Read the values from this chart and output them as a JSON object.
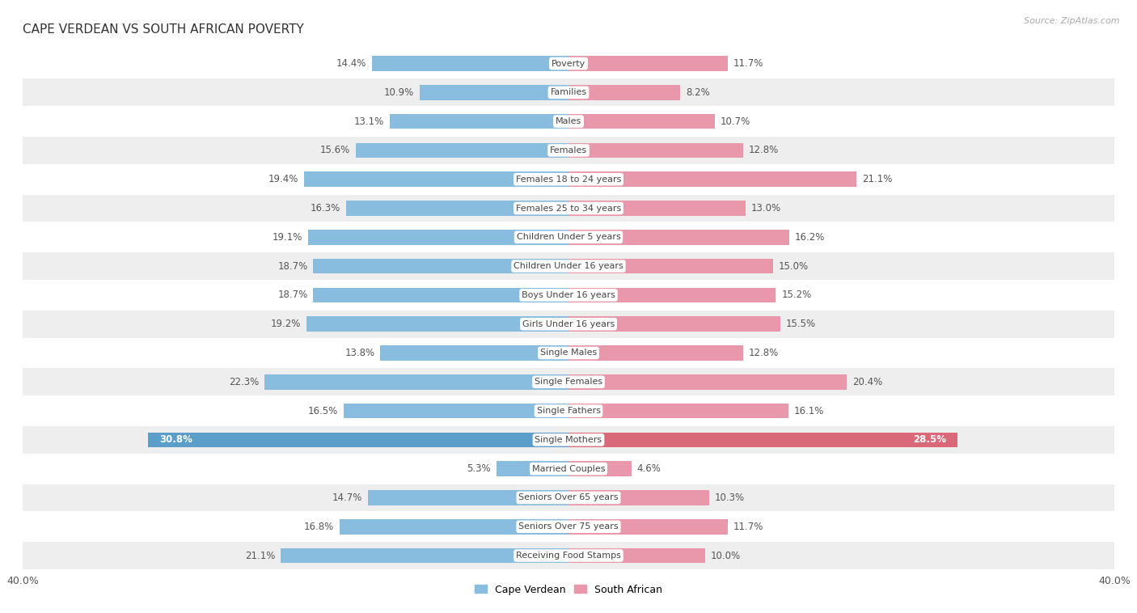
{
  "title": "CAPE VERDEAN VS SOUTH AFRICAN POVERTY",
  "source": "Source: ZipAtlas.com",
  "categories": [
    "Poverty",
    "Families",
    "Males",
    "Females",
    "Females 18 to 24 years",
    "Females 25 to 34 years",
    "Children Under 5 years",
    "Children Under 16 years",
    "Boys Under 16 years",
    "Girls Under 16 years",
    "Single Males",
    "Single Females",
    "Single Fathers",
    "Single Mothers",
    "Married Couples",
    "Seniors Over 65 years",
    "Seniors Over 75 years",
    "Receiving Food Stamps"
  ],
  "cape_verdean": [
    14.4,
    10.9,
    13.1,
    15.6,
    19.4,
    16.3,
    19.1,
    18.7,
    18.7,
    19.2,
    13.8,
    22.3,
    16.5,
    30.8,
    5.3,
    14.7,
    16.8,
    21.1
  ],
  "south_african": [
    11.7,
    8.2,
    10.7,
    12.8,
    21.1,
    13.0,
    16.2,
    15.0,
    15.2,
    15.5,
    12.8,
    20.4,
    16.1,
    28.5,
    4.6,
    10.3,
    11.7,
    10.0
  ],
  "cape_verdean_color": "#88bde0",
  "south_african_color": "#e898aa",
  "single_mothers_cape_color": "#5a9ec9",
  "single_mothers_south_color": "#d96878",
  "background_color": "#ffffff",
  "row_color_light": "#ffffff",
  "row_color_dark": "#eeeeee",
  "axis_max": 40.0,
  "bar_height": 0.52,
  "legend_cape": "Cape Verdean",
  "legend_south": "South African",
  "label_fontsize": 8.5,
  "cat_fontsize": 8.0
}
